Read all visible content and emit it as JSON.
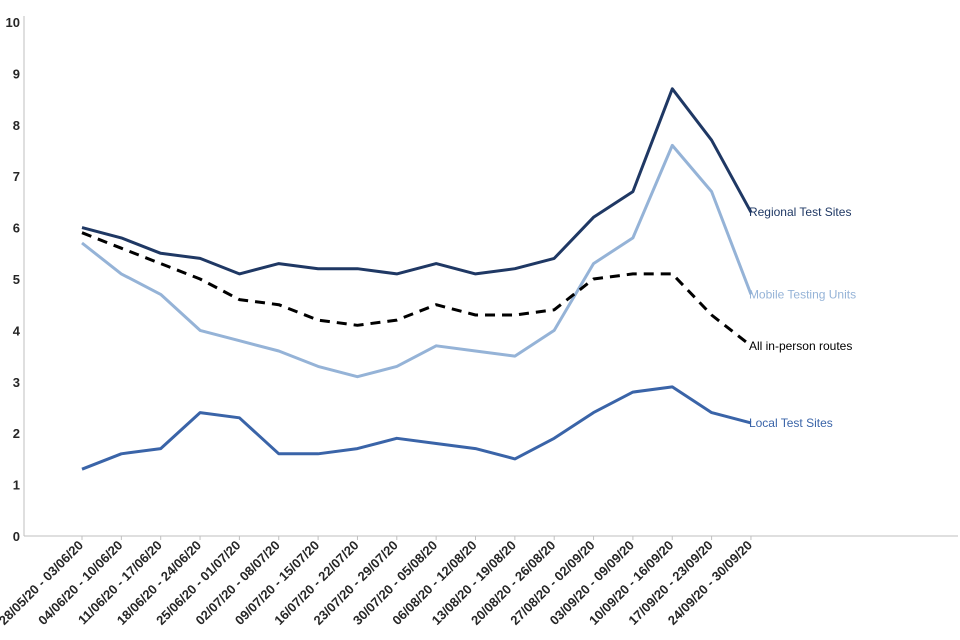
{
  "chart_data": {
    "type": "line",
    "title": "",
    "xlabel": "",
    "ylabel": "",
    "ylim": [
      0,
      10
    ],
    "y_ticks": [
      "0",
      "1",
      "2",
      "3",
      "4",
      "5",
      "6",
      "7",
      "8",
      "9",
      "10"
    ],
    "grid": false,
    "legend": "inline labels at end of each line",
    "categories": [
      "28/05/20 - 03/06/20",
      "04/06/20 - 10/06/20",
      "11/06/20 - 17/06/20",
      "18/06/20 - 24/06/20",
      "25/06/20 - 01/07/20",
      "02/07/20 - 08/07/20",
      "09/07/20 - 15/07/20",
      "16/07/20 - 22/07/20",
      "23/07/20 - 29/07/20",
      "30/07/20 - 05/08/20",
      "06/08/20 - 12/08/20",
      "13/08/20 - 19/08/20",
      "20/08/20 - 26/08/20",
      "27/08/20 - 02/09/20",
      "03/09/20 - 09/09/20",
      "10/09/20 - 16/09/20",
      "17/09/20 - 23/09/20",
      "24/09/20 - 30/09/20"
    ],
    "series": [
      {
        "name": "Regional Test Sites",
        "color": "#1f3864",
        "dash": "solid",
        "values": [
          6.0,
          5.8,
          5.5,
          5.4,
          5.1,
          5.3,
          5.2,
          5.2,
          5.1,
          5.3,
          5.1,
          5.2,
          5.4,
          6.2,
          6.7,
          8.7,
          7.7,
          6.3
        ]
      },
      {
        "name": "Mobile Testing Units",
        "color": "#95b3d7",
        "dash": "solid",
        "values": [
          5.7,
          5.1,
          4.7,
          4.0,
          3.8,
          3.6,
          3.3,
          3.1,
          3.3,
          3.7,
          3.6,
          3.5,
          4.0,
          5.3,
          5.8,
          7.6,
          6.7,
          4.7
        ]
      },
      {
        "name": "All in-person routes",
        "color": "#000000",
        "dash": "dashed",
        "values": [
          5.9,
          5.6,
          5.3,
          5.0,
          4.6,
          4.5,
          4.2,
          4.1,
          4.2,
          4.5,
          4.3,
          4.3,
          4.4,
          5.0,
          5.1,
          5.1,
          4.3,
          3.7
        ]
      },
      {
        "name": "Local Test Sites",
        "color": "#3a64a8",
        "dash": "solid",
        "values": [
          1.3,
          1.6,
          1.7,
          2.4,
          2.3,
          1.6,
          1.6,
          1.7,
          1.9,
          1.8,
          1.7,
          1.5,
          1.9,
          2.4,
          2.8,
          2.9,
          2.4,
          2.2
        ]
      }
    ]
  }
}
